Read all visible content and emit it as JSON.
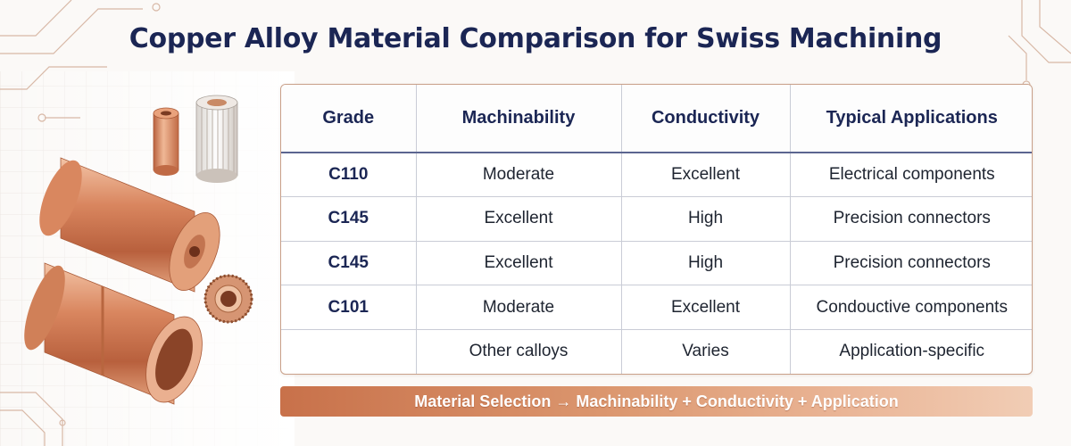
{
  "title": "Copper Alloy Material Comparison for Swiss Machining",
  "table": {
    "headers": [
      "Grade",
      "Machinability",
      "Conductivity",
      "Typical Applications"
    ],
    "rows": [
      [
        "C110",
        "Moderate",
        "Excellent",
        "Electrical components"
      ],
      [
        "C145",
        "Excellent",
        "High",
        "Precision connectors"
      ],
      [
        "C145",
        "Excellent",
        "High",
        "Precision connectors"
      ],
      [
        "C101",
        "Moderate",
        "Excellent",
        "Condouctive components"
      ],
      [
        "",
        "Other calloys",
        "Varies",
        "Application-specific"
      ]
    ]
  },
  "banner": "Material Selection → Machinability + Conductivity + Application",
  "colors": {
    "title": "#1b2654",
    "accent_copper": "#c8714a",
    "table_border": "#c9a089"
  },
  "icons": [
    "copper-bushing-icon",
    "copper-knurled-spacer-icon",
    "copper-rod-icon",
    "copper-tube-icon",
    "knurled-nut-icon",
    "circuit-trace-decoration"
  ]
}
